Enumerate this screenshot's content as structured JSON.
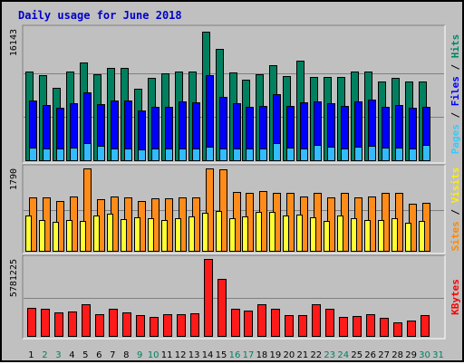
{
  "chart_data": {
    "type": "bar",
    "title": "Daily usage for June 2018",
    "categories": [
      "1",
      "2",
      "3",
      "4",
      "5",
      "6",
      "7",
      "8",
      "9",
      "10",
      "11",
      "12",
      "13",
      "14",
      "15",
      "16",
      "17",
      "18",
      "19",
      "20",
      "21",
      "22",
      "23",
      "24",
      "25",
      "26",
      "27",
      "28",
      "29",
      "30",
      "31"
    ],
    "weekend_days": [
      "2",
      "3",
      "9",
      "10",
      "16",
      "17",
      "23",
      "24",
      "30",
      "31"
    ],
    "panels": [
      {
        "name": "hits-files-pages",
        "max_label": "16143",
        "ylim": [
          0,
          16143
        ],
        "legend": [
          {
            "label": "Pages",
            "color": "#33ccff"
          },
          {
            "sep": " / ",
            "color": "#000000"
          },
          {
            "label": "Files",
            "color": "#0000ff"
          },
          {
            "sep": " / ",
            "color": "#000000"
          },
          {
            "label": "Hits",
            "color": "#008866"
          }
        ],
        "series": [
          {
            "name": "Hits",
            "color": "#00805f",
            "values": [
              11000,
              10500,
              9000,
              11000,
              12000,
              10600,
              11400,
              11400,
              8900,
              10200,
              10700,
              10900,
              10900,
              15800,
              13700,
              10800,
              9900,
              10600,
              11700,
              10400,
              12300,
              10300,
              10300,
              10300,
              11000,
              10900,
              9700,
              10200,
              9700,
              9700,
              null
            ]
          },
          {
            "name": "Files",
            "color": "#0000ff",
            "values": [
              7400,
              6900,
              6500,
              7100,
              8400,
              7000,
              7400,
              7400,
              6200,
              6600,
              6600,
              7300,
              7200,
              10500,
              7900,
              7100,
              6600,
              6700,
              8200,
              6700,
              7200,
              7300,
              7100,
              6700,
              7300,
              7500,
              6600,
              6800,
              6500,
              6600,
              null
            ]
          },
          {
            "name": "Pages",
            "color": "#33bbff",
            "values": [
              1700,
              1500,
              1500,
              1700,
              2200,
              1900,
              1600,
              1500,
              1400,
              1600,
              1600,
              1600,
              1600,
              1800,
              1600,
              1600,
              1500,
              1600,
              2200,
              1700,
              1600,
              2000,
              1800,
              1500,
              1800,
              1900,
              1700,
              1700,
              1500,
              2000,
              null
            ]
          }
        ]
      },
      {
        "name": "visits-sites",
        "max_label": "1790",
        "ylim": [
          0,
          1790
        ],
        "legend": [
          {
            "label": "Sites",
            "color": "#ff8800"
          },
          {
            "sep": " / ",
            "color": "#000000"
          },
          {
            "label": "Visits",
            "color": "#ffee00"
          }
        ],
        "series": [
          {
            "name": "Visits",
            "color": "#ff8c1a",
            "values": [
              1160,
              1160,
              1080,
              1180,
              1790,
              1130,
              1180,
              1160,
              1080,
              1150,
              1150,
              1160,
              1170,
              1790,
              1770,
              1280,
              1270,
              1300,
              1260,
              1260,
              1180,
              1260,
              1160,
              1260,
              1170,
              1180,
              1270,
              1260,
              1030,
              1060,
              null
            ]
          },
          {
            "name": "Sites",
            "color": "#ffff33",
            "values": [
              780,
              690,
              650,
              690,
              670,
              780,
              820,
              700,
              730,
              720,
              680,
              720,
              760,
              830,
              880,
              720,
              750,
              850,
              850,
              780,
              790,
              730,
              660,
              770,
              720,
              690,
              690,
              720,
              620,
              660,
              null
            ]
          }
        ]
      },
      {
        "name": "kbytes",
        "max_label": "5781225",
        "ylim": [
          0,
          5781225
        ],
        "legend": [
          {
            "label": "KBytes",
            "color": "#ff0000"
          }
        ],
        "series": [
          {
            "name": "KBytes",
            "color": "#ff1a1a",
            "values": [
              2160000,
              2100000,
              1820000,
              1860000,
              2400000,
              1700000,
              2100000,
              1820000,
              1600000,
              1500000,
              1690000,
              1700000,
              1730000,
              5781225,
              4290000,
              2100000,
              1920000,
              2410000,
              2110000,
              1630000,
              1610000,
              2440000,
              2100000,
              1500000,
              1540000,
              1700000,
              1400000,
              1100000,
              1230000,
              1620000,
              null
            ]
          }
        ]
      }
    ],
    "colors": {
      "background": "#c0c0c0",
      "weekday_label": "#000000",
      "weekend_label": "#00805f",
      "gridline": "#808080"
    }
  }
}
